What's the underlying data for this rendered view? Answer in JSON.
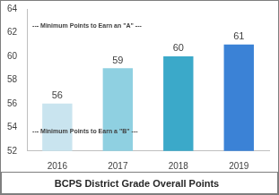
{
  "chart_data": {
    "type": "bar",
    "title": "BCPS District Grade Overall Points",
    "annotations": [
      "--- Minimum Points to Earn an \"A\" ---",
      "--- Minimum Points to Earn a \"B\" ---"
    ],
    "categories": [
      "2016",
      "2017",
      "2018",
      "2019"
    ],
    "values": [
      56,
      59,
      60,
      61
    ],
    "colors": [
      "#c9e4ef",
      "#8fd0e1",
      "#3ba9c9",
      "#3b82d6"
    ],
    "ylim": [
      52,
      64
    ],
    "yticks": [
      52,
      54,
      56,
      58,
      60,
      62,
      64
    ],
    "grid": false,
    "data_labels": true
  }
}
